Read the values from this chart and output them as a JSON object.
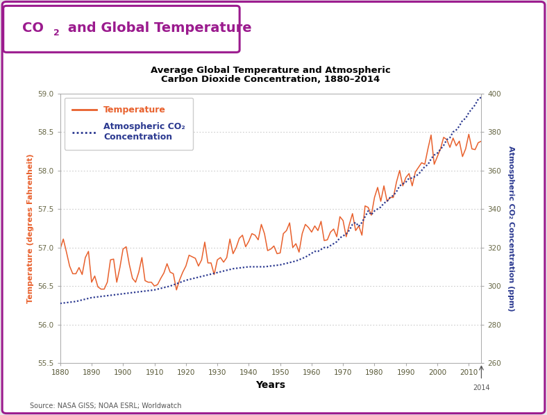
{
  "title_sub1": "Average Global Temperature and Atmospheric",
  "title_sub2": "Carbon Dioxide Concentration, 1880–2014",
  "xlabel": "Years",
  "ylabel_left": "Temperature (degrees Fahrenheit)",
  "ylabel_right": "Atmospheric CO₂ Concentration (ppm)",
  "source": "Source: NASA GISS; NOAA ESRL; Worldwatch",
  "legend_temp": "Temperature",
  "legend_co2_1": "Atmospheric CO₂",
  "legend_co2_2": "Concentration",
  "temp_color": "#E8602C",
  "co2_color": "#2B3990",
  "title_main_color": "#9B1B8E",
  "background_outer": "#e8e8e8",
  "background_inner": "#ffffff",
  "box_border_color": "#9B1B8E",
  "ylim_left": [
    55.5,
    59.0
  ],
  "ylim_right": [
    260,
    400
  ],
  "yticks_left": [
    55.5,
    56.0,
    56.5,
    57.0,
    57.5,
    58.0,
    58.5,
    59.0
  ],
  "yticks_right": [
    260,
    280,
    300,
    320,
    340,
    360,
    380,
    400
  ],
  "xticks": [
    1880,
    1890,
    1900,
    1910,
    1920,
    1930,
    1940,
    1950,
    1960,
    1970,
    1980,
    1990,
    2000,
    2010
  ],
  "years_temp": [
    1880,
    1881,
    1882,
    1883,
    1884,
    1885,
    1886,
    1887,
    1888,
    1889,
    1890,
    1891,
    1892,
    1893,
    1894,
    1895,
    1896,
    1897,
    1898,
    1899,
    1900,
    1901,
    1902,
    1903,
    1904,
    1905,
    1906,
    1907,
    1908,
    1909,
    1910,
    1911,
    1912,
    1913,
    1914,
    1915,
    1916,
    1917,
    1918,
    1919,
    1920,
    1921,
    1922,
    1923,
    1924,
    1925,
    1926,
    1927,
    1928,
    1929,
    1930,
    1931,
    1932,
    1933,
    1934,
    1935,
    1936,
    1937,
    1938,
    1939,
    1940,
    1941,
    1942,
    1943,
    1944,
    1945,
    1946,
    1947,
    1948,
    1949,
    1950,
    1951,
    1952,
    1953,
    1954,
    1955,
    1956,
    1957,
    1958,
    1959,
    1960,
    1961,
    1962,
    1963,
    1964,
    1965,
    1966,
    1967,
    1968,
    1969,
    1970,
    1971,
    1972,
    1973,
    1974,
    1975,
    1976,
    1977,
    1978,
    1979,
    1980,
    1981,
    1982,
    1983,
    1984,
    1985,
    1986,
    1987,
    1988,
    1989,
    1990,
    1991,
    1992,
    1993,
    1994,
    1995,
    1996,
    1997,
    1998,
    1999,
    2000,
    2001,
    2002,
    2003,
    2004,
    2005,
    2006,
    2007,
    2008,
    2009,
    2010,
    2011,
    2012,
    2013,
    2014
  ],
  "temp_values": [
    56.98,
    57.11,
    56.94,
    56.76,
    56.66,
    56.66,
    56.74,
    56.65,
    56.87,
    56.95,
    56.55,
    56.63,
    56.49,
    56.46,
    56.46,
    56.55,
    56.84,
    56.85,
    56.55,
    56.74,
    56.98,
    57.01,
    56.78,
    56.6,
    56.55,
    56.68,
    56.87,
    56.57,
    56.55,
    56.55,
    56.5,
    56.52,
    56.6,
    56.67,
    56.79,
    56.68,
    56.66,
    56.45,
    56.58,
    56.68,
    56.76,
    56.9,
    56.88,
    56.86,
    56.76,
    56.84,
    57.07,
    56.8,
    56.8,
    56.65,
    56.84,
    56.87,
    56.81,
    56.87,
    57.11,
    56.92,
    57.0,
    57.12,
    57.16,
    57.01,
    57.08,
    57.18,
    57.16,
    57.1,
    57.3,
    57.18,
    56.96,
    56.98,
    57.02,
    56.92,
    56.93,
    57.18,
    57.22,
    57.32,
    57.0,
    57.05,
    56.94,
    57.18,
    57.3,
    57.26,
    57.2,
    57.28,
    57.22,
    57.34,
    57.09,
    57.1,
    57.2,
    57.24,
    57.14,
    57.4,
    57.35,
    57.14,
    57.3,
    57.44,
    57.22,
    57.28,
    57.16,
    57.54,
    57.52,
    57.42,
    57.65,
    57.78,
    57.6,
    57.8,
    57.6,
    57.65,
    57.65,
    57.85,
    58.0,
    57.8,
    57.91,
    57.96,
    57.8,
    57.98,
    58.04,
    58.1,
    58.08,
    58.28,
    58.46,
    58.08,
    58.18,
    58.28,
    58.43,
    58.4,
    58.3,
    58.42,
    58.32,
    58.38,
    58.18,
    58.28,
    58.47,
    58.28,
    58.27,
    58.36,
    58.38
  ],
  "years_co2": [
    1880,
    1885,
    1890,
    1895,
    1900,
    1905,
    1910,
    1915,
    1920,
    1925,
    1930,
    1935,
    1940,
    1945,
    1950,
    1955,
    1958,
    1959,
    1960,
    1961,
    1962,
    1963,
    1964,
    1965,
    1966,
    1967,
    1968,
    1969,
    1970,
    1971,
    1972,
    1973,
    1974,
    1975,
    1976,
    1977,
    1978,
    1979,
    1980,
    1981,
    1982,
    1983,
    1984,
    1985,
    1986,
    1987,
    1988,
    1989,
    1990,
    1991,
    1992,
    1993,
    1994,
    1995,
    1996,
    1997,
    1998,
    1999,
    2000,
    2001,
    2002,
    2003,
    2004,
    2005,
    2006,
    2007,
    2008,
    2009,
    2010,
    2011,
    2012,
    2013,
    2014
  ],
  "co2_values": [
    291,
    292,
    294,
    295,
    296,
    297,
    298,
    300,
    303,
    305,
    307,
    309,
    310,
    310,
    311,
    313,
    315,
    316,
    317,
    318,
    318,
    319,
    320,
    320,
    321,
    322,
    323,
    325,
    326,
    327,
    329,
    332,
    333,
    331,
    333,
    336,
    339,
    337,
    339,
    340,
    341,
    343,
    344,
    346,
    347,
    349,
    352,
    353,
    354,
    356,
    356,
    357,
    358,
    360,
    362,
    363,
    366,
    368,
    369,
    371,
    373,
    376,
    377,
    380,
    381,
    383,
    386,
    387,
    390,
    392,
    394,
    397,
    398
  ]
}
